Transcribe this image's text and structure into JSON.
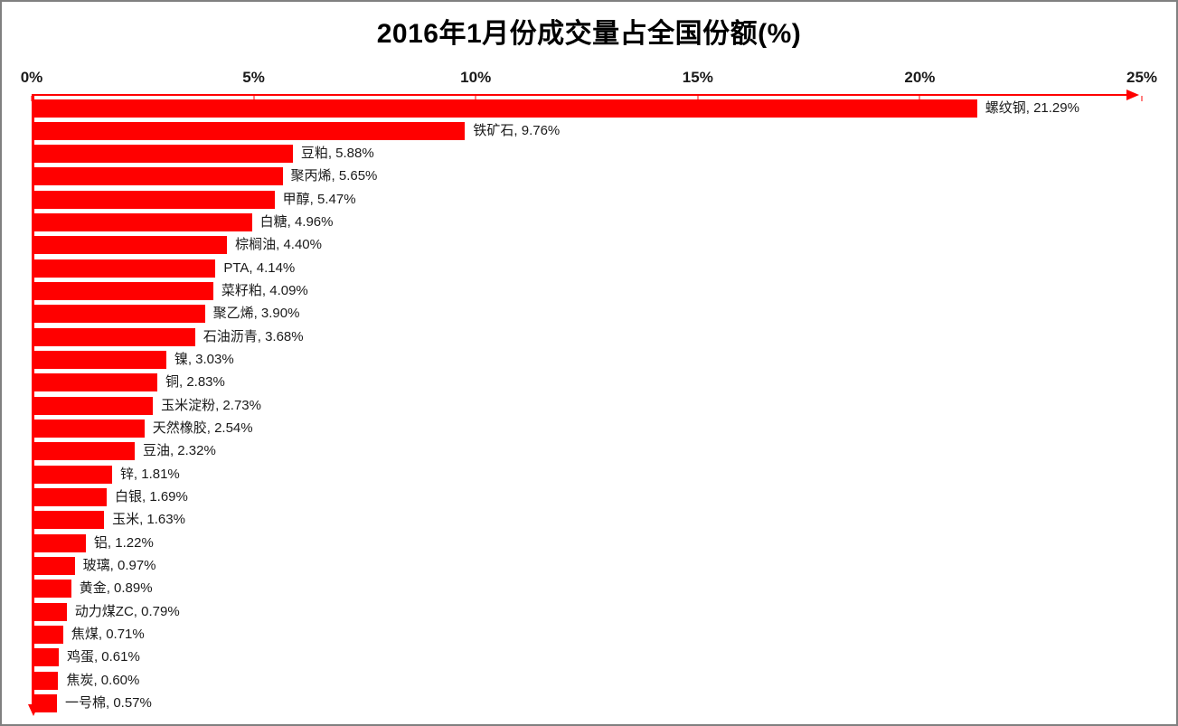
{
  "chart_data": {
    "type": "bar",
    "orientation": "horizontal",
    "title": "2016年1月份成交量占全国份额(%)",
    "categories": [
      "螺纹钢",
      "铁矿石",
      "豆粕",
      "聚丙烯",
      "甲醇",
      "白糖",
      "棕榈油",
      "PTA",
      "菜籽粕",
      "聚乙烯",
      "石油沥青",
      "镍",
      "铜",
      "玉米淀粉",
      "天然橡胶",
      "豆油",
      "锌",
      "白银",
      "玉米",
      "铝",
      "玻璃",
      "黄金",
      "动力煤ZC",
      "焦煤",
      "鸡蛋",
      "焦炭",
      "一号棉"
    ],
    "values": [
      21.29,
      9.76,
      5.88,
      5.65,
      5.47,
      4.96,
      4.4,
      4.14,
      4.09,
      3.9,
      3.68,
      3.03,
      2.83,
      2.73,
      2.54,
      2.32,
      1.81,
      1.69,
      1.63,
      1.22,
      0.97,
      0.89,
      0.79,
      0.71,
      0.61,
      0.6,
      0.57
    ],
    "data_label_format": "{name}, {value}%",
    "x_tick_labels": [
      "0%",
      "5%",
      "10%",
      "15%",
      "20%",
      "25%"
    ],
    "xlim": [
      0,
      25
    ],
    "xlabel": "",
    "ylabel": "",
    "grid": false,
    "legend": null,
    "bar_color": "#FF0000",
    "axis_color": "#FF0000",
    "text_color": "#1a1a1a",
    "background_color": "#FFFFFF"
  }
}
